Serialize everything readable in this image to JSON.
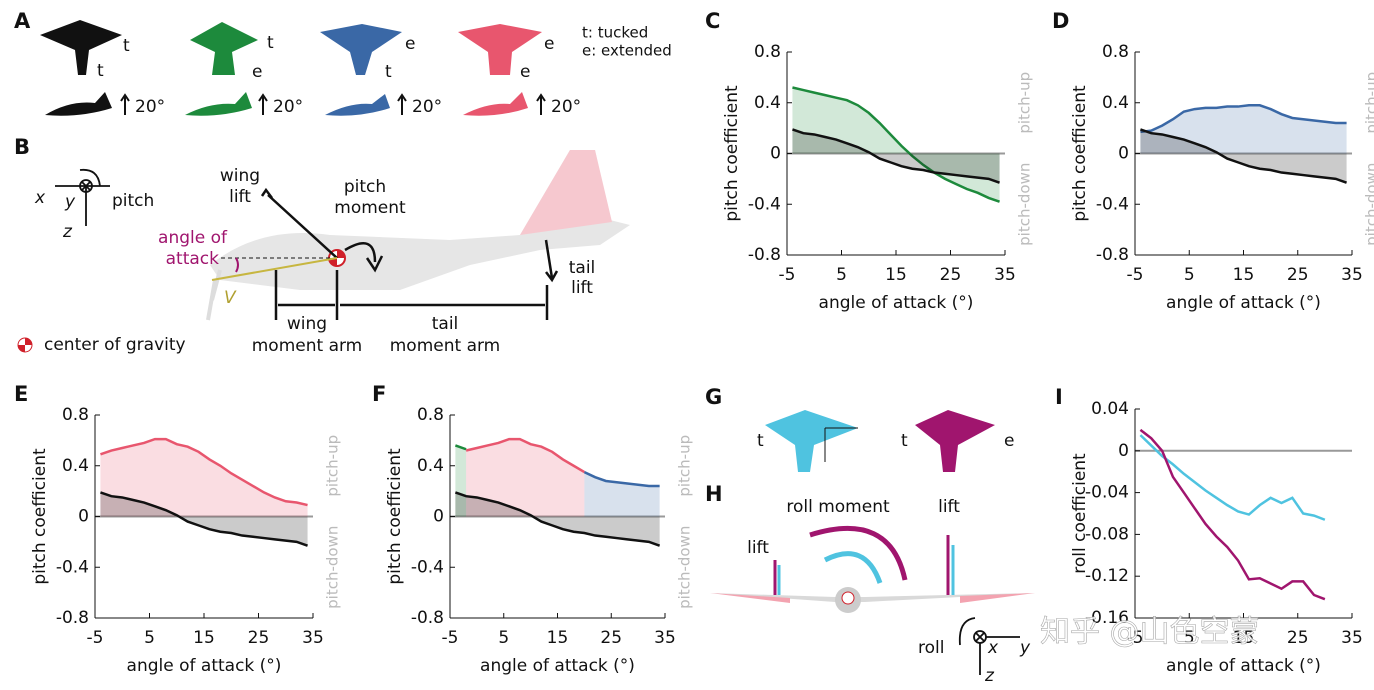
{
  "labels": [
    "A",
    "B",
    "C",
    "D",
    "E",
    "F",
    "G",
    "H",
    "I"
  ],
  "panel_a": {
    "wing_marks": [
      "t",
      "t",
      "e",
      "e"
    ],
    "tail_marks": [
      "t",
      "e",
      "t",
      "e"
    ],
    "angles": [
      "20°",
      "20°",
      "20°",
      "20°"
    ],
    "legend": [
      "t: tucked",
      "e: extended"
    ]
  },
  "panel_b": {
    "axes": [
      "x",
      "y",
      "z"
    ],
    "pitch": "pitch",
    "wing_lift": [
      "wing",
      "lift"
    ],
    "pitch_moment": [
      "pitch",
      "moment"
    ],
    "angle_of_attack": [
      "angle of",
      "attack"
    ],
    "velocity": "V",
    "tail_lift": [
      "tail",
      "lift"
    ],
    "wing_moment_arm": [
      "wing",
      "moment arm"
    ],
    "tail_moment_arm": [
      "tail",
      "moment arm"
    ],
    "center_of_gravity": "center of gravity"
  },
  "panel_g": {
    "marks": [
      "t",
      "t",
      "e"
    ]
  },
  "panel_h": {
    "roll_moment": "roll moment",
    "lift": [
      "lift",
      "lift"
    ],
    "roll": "roll",
    "axes": [
      "x",
      "y",
      "z"
    ]
  },
  "watermark": "知乎 @山色空蒙",
  "chart_data": [
    {
      "type": "line",
      "ylabel": "pitch coefficient",
      "xlabel": "angle of attack (°)",
      "annotations": [
        "pitch-up",
        "pitch-down"
      ],
      "xlim": [
        -5,
        35
      ],
      "xticks": [
        -5,
        5,
        15,
        25,
        35
      ],
      "ylim": [
        -0.8,
        0.8
      ],
      "yticks": [
        -0.8,
        -0.4,
        0,
        0.4,
        0.8
      ],
      "fill": true,
      "x": [
        -4,
        -2,
        0,
        2,
        4,
        6,
        8,
        10,
        12,
        14,
        16,
        18,
        20,
        22,
        24,
        26,
        28,
        30,
        32,
        34
      ],
      "series": [
        {
          "color": "#1d8a3c",
          "values": [
            0.52,
            0.5,
            0.48,
            0.46,
            0.44,
            0.42,
            0.38,
            0.32,
            0.24,
            0.15,
            0.06,
            -0.02,
            -0.09,
            -0.15,
            -0.2,
            -0.24,
            -0.28,
            -0.31,
            -0.35,
            -0.38
          ]
        },
        {
          "color": "#111111",
          "values": [
            0.19,
            0.16,
            0.15,
            0.13,
            0.11,
            0.08,
            0.05,
            0.01,
            -0.04,
            -0.07,
            -0.1,
            -0.12,
            -0.13,
            -0.15,
            -0.16,
            -0.17,
            -0.18,
            -0.19,
            -0.2,
            -0.23
          ]
        }
      ]
    },
    {
      "type": "line",
      "ylabel": "pitch coefficient",
      "xlabel": "angle of attack (°)",
      "annotations": [
        "pitch-up",
        "pitch-down"
      ],
      "xlim": [
        -5,
        35
      ],
      "xticks": [
        -5,
        5,
        15,
        25,
        35
      ],
      "ylim": [
        -0.8,
        0.8
      ],
      "yticks": [
        -0.8,
        -0.4,
        0,
        0.4,
        0.8
      ],
      "fill": true,
      "x": [
        -4,
        -2,
        0,
        2,
        4,
        6,
        8,
        10,
        12,
        14,
        16,
        18,
        20,
        22,
        24,
        26,
        28,
        30,
        32,
        34
      ],
      "series": [
        {
          "color": "#3a68a6",
          "values": [
            0.17,
            0.18,
            0.22,
            0.27,
            0.33,
            0.35,
            0.36,
            0.36,
            0.37,
            0.37,
            0.38,
            0.38,
            0.35,
            0.31,
            0.28,
            0.27,
            0.26,
            0.25,
            0.24,
            0.24
          ]
        },
        {
          "color": "#111111",
          "values": [
            0.19,
            0.16,
            0.15,
            0.13,
            0.11,
            0.08,
            0.05,
            0.01,
            -0.04,
            -0.07,
            -0.1,
            -0.12,
            -0.13,
            -0.15,
            -0.16,
            -0.17,
            -0.18,
            -0.19,
            -0.2,
            -0.23
          ]
        }
      ]
    },
    {
      "type": "line",
      "ylabel": "pitch coefficient",
      "xlabel": "angle of attack (°)",
      "annotations": [
        "pitch-up",
        "pitch-down"
      ],
      "xlim": [
        -5,
        35
      ],
      "xticks": [
        -5,
        5,
        15,
        25,
        35
      ],
      "ylim": [
        -0.8,
        0.8
      ],
      "yticks": [
        -0.8,
        -0.4,
        0,
        0.4,
        0.8
      ],
      "fill": true,
      "x": [
        -4,
        -2,
        0,
        2,
        4,
        6,
        8,
        10,
        12,
        14,
        16,
        18,
        20,
        22,
        24,
        26,
        28,
        30,
        32,
        34
      ],
      "series": [
        {
          "color": "#e8566e",
          "values": [
            0.49,
            0.52,
            0.54,
            0.56,
            0.58,
            0.61,
            0.61,
            0.57,
            0.55,
            0.51,
            0.45,
            0.4,
            0.34,
            0.29,
            0.24,
            0.19,
            0.15,
            0.12,
            0.11,
            0.09
          ]
        },
        {
          "color": "#111111",
          "values": [
            0.19,
            0.16,
            0.15,
            0.13,
            0.11,
            0.08,
            0.05,
            0.01,
            -0.04,
            -0.07,
            -0.1,
            -0.12,
            -0.13,
            -0.15,
            -0.16,
            -0.17,
            -0.18,
            -0.19,
            -0.2,
            -0.23
          ]
        }
      ]
    },
    {
      "type": "line",
      "ylabel": "pitch coefficient",
      "xlabel": "angle of attack (°)",
      "annotations": [
        "pitch-up",
        "pitch-down"
      ],
      "xlim": [
        -5,
        35
      ],
      "xticks": [
        -5,
        5,
        15,
        25,
        35
      ],
      "ylim": [
        -0.8,
        0.8
      ],
      "yticks": [
        -0.8,
        -0.4,
        0,
        0.4,
        0.8
      ],
      "fill": true,
      "series": [
        {
          "color": "#1d8a3c",
          "x": [
            -4,
            -2
          ],
          "values": [
            0.56,
            0.53
          ]
        },
        {
          "color": "#e8566e",
          "x": [
            -2,
            0,
            2,
            4,
            6,
            8,
            10,
            12,
            14,
            16,
            18,
            20
          ],
          "values": [
            0.52,
            0.54,
            0.56,
            0.58,
            0.61,
            0.61,
            0.57,
            0.55,
            0.51,
            0.45,
            0.4,
            0.35
          ]
        },
        {
          "color": "#3a68a6",
          "x": [
            20,
            22,
            24,
            26,
            28,
            30,
            32,
            34
          ],
          "values": [
            0.35,
            0.31,
            0.28,
            0.27,
            0.26,
            0.25,
            0.24,
            0.24
          ]
        },
        {
          "color": "#111111",
          "x": [
            -4,
            -2,
            0,
            2,
            4,
            6,
            8,
            10,
            12,
            14,
            16,
            18,
            20,
            22,
            24,
            26,
            28,
            30,
            32,
            34
          ],
          "values": [
            0.19,
            0.16,
            0.15,
            0.13,
            0.11,
            0.08,
            0.05,
            0.01,
            -0.04,
            -0.07,
            -0.1,
            -0.12,
            -0.13,
            -0.15,
            -0.16,
            -0.17,
            -0.18,
            -0.19,
            -0.2,
            -0.23
          ]
        }
      ]
    },
    {
      "type": "line",
      "ylabel": "roll coefficient",
      "xlabel": "angle of attack (°)",
      "xlim": [
        -5,
        35
      ],
      "xticks": [
        -5,
        5,
        15,
        25,
        35
      ],
      "ylim": [
        -0.16,
        0.04
      ],
      "yticks": [
        -0.16,
        -0.12,
        -0.08,
        -0.04,
        0,
        0.04
      ],
      "fill": false,
      "x": [
        -4,
        -2,
        0,
        2,
        4,
        6,
        8,
        10,
        12,
        14,
        16,
        18,
        20,
        22,
        24,
        26,
        28,
        30
      ],
      "series": [
        {
          "color": "#4fc3e0",
          "values": [
            0.015,
            0.005,
            -0.005,
            -0.013,
            -0.022,
            -0.03,
            -0.038,
            -0.045,
            -0.052,
            -0.058,
            -0.061,
            -0.052,
            -0.045,
            -0.05,
            -0.045,
            -0.06,
            -0.062,
            -0.066
          ]
        },
        {
          "color": "#a0156e",
          "values": [
            0.02,
            0.012,
            0.0,
            -0.025,
            -0.04,
            -0.055,
            -0.07,
            -0.082,
            -0.092,
            -0.105,
            -0.123,
            -0.122,
            -0.127,
            -0.132,
            -0.125,
            -0.125,
            -0.138,
            -0.142
          ]
        }
      ]
    }
  ]
}
